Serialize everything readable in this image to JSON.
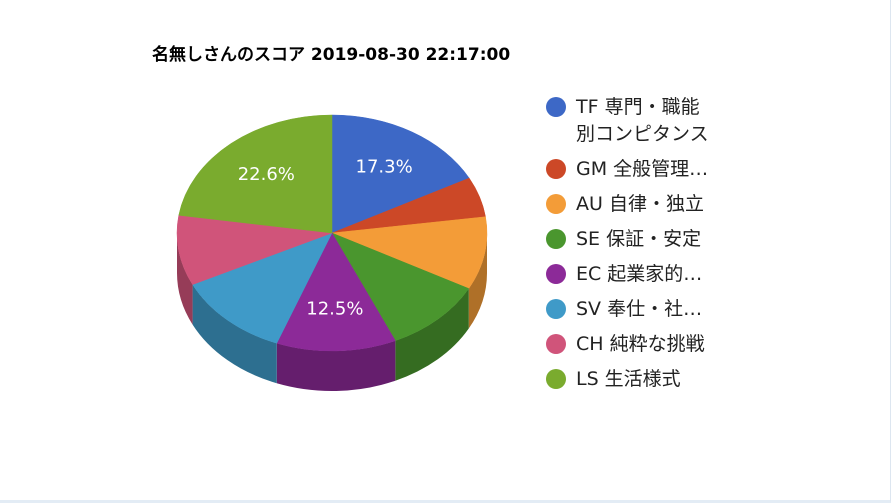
{
  "chart_data": {
    "type": "pie3d",
    "title": "名無しさんのスコア 2019-08-30 22:17:00",
    "categories": [
      "TF 専門・職能別コンピタンス",
      "GM 全般管理…",
      "AU 自律・独立",
      "SE 保証・安定",
      "EC 起業家的…",
      "SV 奉仕・社…",
      "CH 純粋な挑戦",
      "LS 生活様式"
    ],
    "values": [
      17.3,
      5.5,
      10,
      10.5,
      12.5,
      12,
      9.6,
      22.6
    ],
    "value_labels": [
      "17.3%",
      null,
      null,
      null,
      "12.5%",
      null,
      null,
      "22.6%"
    ],
    "colors": [
      "#3d68c6",
      "#cc4827",
      "#f39c38",
      "#4a962e",
      "#8c2a98",
      "#3f9ac8",
      "#d0547a",
      "#7aab2e"
    ]
  }
}
